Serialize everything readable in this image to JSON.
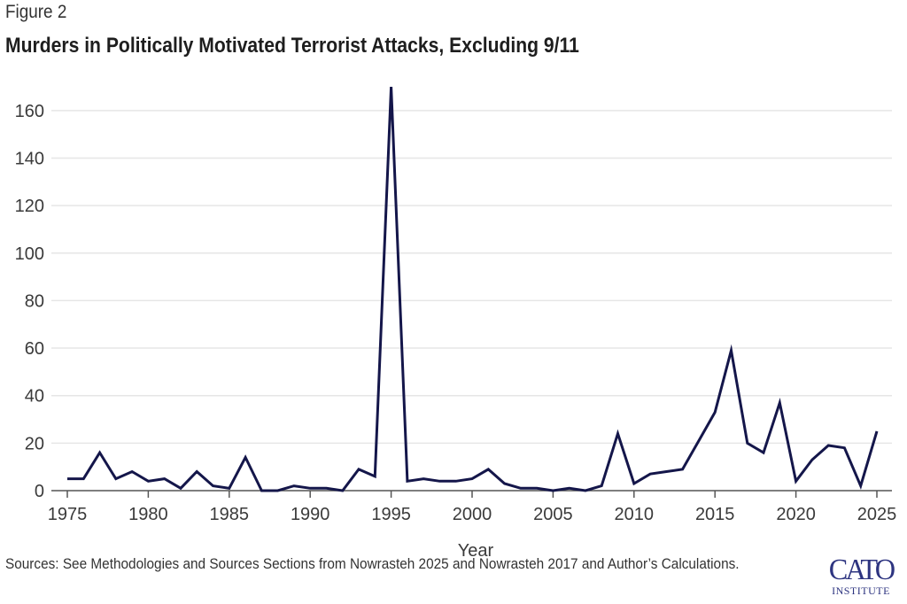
{
  "figure_label": "Figure 2",
  "sources": "Sources: See Methodologies and Sources Sections from Nowrasteh 2025 and Nowrasteh 2017 and Author’s Calculations.",
  "logo": {
    "main": "CATO",
    "sub": "INSTITUTE"
  },
  "colors": {
    "line": "#14164a",
    "grid": "#e6e6e6",
    "axis": "#555555"
  },
  "chart_data": {
    "type": "line",
    "title": "Murders in Politically Motivated Terrorist Attacks, Excluding 9/11",
    "xlabel": "Year",
    "ylabel": "",
    "xlim": [
      1975,
      2025
    ],
    "ylim": [
      0,
      170
    ],
    "grid": true,
    "legend": "none",
    "x_ticks": [
      "1975",
      "1980",
      "1985",
      "1990",
      "1995",
      "2000",
      "2005",
      "2010",
      "2015",
      "2020",
      "2025"
    ],
    "y_ticks": [
      "0",
      "20",
      "40",
      "60",
      "80",
      "100",
      "120",
      "140",
      "160"
    ],
    "x": [
      1975,
      1976,
      1977,
      1978,
      1979,
      1980,
      1981,
      1982,
      1983,
      1984,
      1985,
      1986,
      1987,
      1988,
      1989,
      1990,
      1991,
      1992,
      1993,
      1994,
      1995,
      1996,
      1997,
      1998,
      1999,
      2000,
      2001,
      2002,
      2003,
      2004,
      2005,
      2006,
      2007,
      2008,
      2009,
      2010,
      2011,
      2012,
      2013,
      2014,
      2015,
      2016,
      2017,
      2018,
      2019,
      2020,
      2021,
      2022,
      2023,
      2024,
      2025
    ],
    "series": [
      {
        "name": "Murders",
        "values": [
          5,
          5,
          16,
          5,
          8,
          4,
          5,
          1,
          8,
          2,
          1,
          14,
          0,
          0,
          2,
          1,
          1,
          0,
          9,
          6,
          170,
          4,
          5,
          4,
          4,
          5,
          9,
          3,
          1,
          1,
          0,
          1,
          0,
          2,
          24,
          3,
          7,
          8,
          9,
          21,
          33,
          59,
          20,
          16,
          37,
          4,
          13,
          19,
          18,
          2,
          25
        ]
      }
    ]
  }
}
